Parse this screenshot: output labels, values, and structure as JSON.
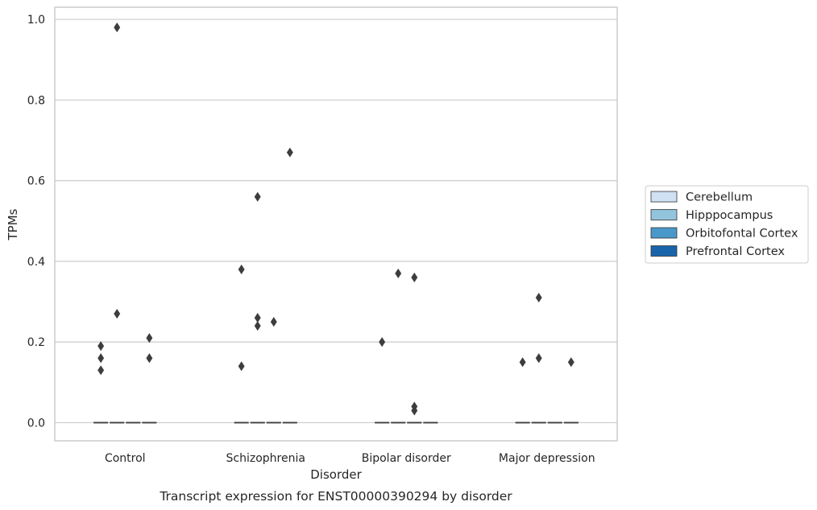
{
  "chart_data": {
    "type": "box",
    "caption": "Transcript expression for ENST00000390294 by disorder",
    "xlabel": "Disorder",
    "ylabel": "TPMs",
    "ylim": [
      -0.045,
      1.03
    ],
    "yticks": [
      0.0,
      0.2,
      0.4,
      0.6,
      0.8,
      1.0
    ],
    "ytick_labels": [
      "0.0",
      "0.2",
      "0.4",
      "0.6",
      "0.8",
      "1.0"
    ],
    "grid": true,
    "categories": [
      "Control",
      "Schizophrenia",
      "Bipolar disorder",
      "Major depression"
    ],
    "series": [
      {
        "name": "Cerebellum",
        "color": "#cfe1f2"
      },
      {
        "name": "Hipppocampus",
        "color": "#93c4de"
      },
      {
        "name": "Orbitofontal Cortex",
        "color": "#4a98c9"
      },
      {
        "name": "Prefrontal Cortex",
        "color": "#1764ab"
      }
    ],
    "median": 0.0,
    "outliers": [
      {
        "category": "Control",
        "series": "Cerebellum",
        "values": [
          0.19,
          0.16,
          0.13
        ]
      },
      {
        "category": "Control",
        "series": "Hipppocampus",
        "values": [
          0.98,
          0.27
        ]
      },
      {
        "category": "Control",
        "series": "Prefrontal Cortex",
        "values": [
          0.21,
          0.16
        ]
      },
      {
        "category": "Schizophrenia",
        "series": "Cerebellum",
        "values": [
          0.38,
          0.14
        ]
      },
      {
        "category": "Schizophrenia",
        "series": "Hipppocampus",
        "values": [
          0.56,
          0.26,
          0.24
        ]
      },
      {
        "category": "Schizophrenia",
        "series": "Orbitofontal Cortex",
        "values": [
          0.25
        ]
      },
      {
        "category": "Schizophrenia",
        "series": "Prefrontal Cortex",
        "values": [
          0.67
        ]
      },
      {
        "category": "Bipolar disorder",
        "series": "Cerebellum",
        "values": [
          0.2
        ]
      },
      {
        "category": "Bipolar disorder",
        "series": "Hipppocampus",
        "values": [
          0.37
        ]
      },
      {
        "category": "Bipolar disorder",
        "series": "Orbitofontal Cortex",
        "values": [
          0.36,
          0.04,
          0.03
        ]
      },
      {
        "category": "Major depression",
        "series": "Cerebellum",
        "values": [
          0.15
        ]
      },
      {
        "category": "Major depression",
        "series": "Hipppocampus",
        "values": [
          0.31,
          0.16
        ]
      },
      {
        "category": "Major depression",
        "series": "Prefrontal Cortex",
        "values": [
          0.15
        ]
      }
    ],
    "legend_position": "right"
  }
}
